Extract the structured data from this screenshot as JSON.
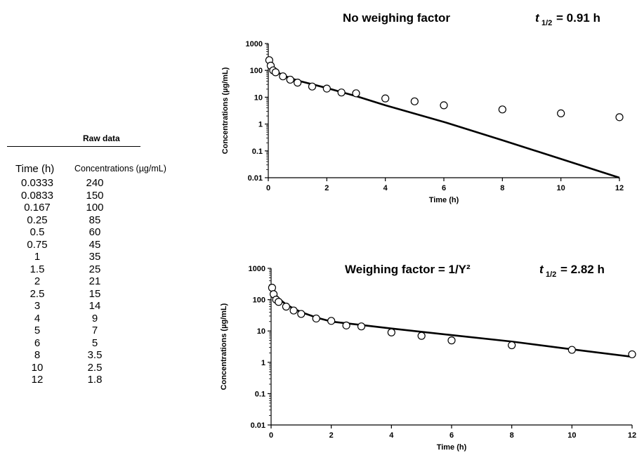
{
  "raw_data": {
    "title": "Raw data",
    "header_time": "Time (h)",
    "header_conc": "Concentrations (µg/mL)",
    "rows": [
      {
        "t": "0.0333",
        "c": "240"
      },
      {
        "t": "0.0833",
        "c": "150"
      },
      {
        "t": "0.167",
        "c": "100"
      },
      {
        "t": "0.25",
        "c": "85"
      },
      {
        "t": "0.5",
        "c": "60"
      },
      {
        "t": "0.75",
        "c": "45"
      },
      {
        "t": "1",
        "c": "35"
      },
      {
        "t": "1.5",
        "c": "25"
      },
      {
        "t": "2",
        "c": "21"
      },
      {
        "t": "2.5",
        "c": "15"
      },
      {
        "t": "3",
        "c": "14"
      },
      {
        "t": "4",
        "c": "9"
      },
      {
        "t": "5",
        "c": "7"
      },
      {
        "t": "6",
        "c": "5"
      },
      {
        "t": "8",
        "c": "3.5"
      },
      {
        "t": "10",
        "c": "2.5"
      },
      {
        "t": "12",
        "c": "1.8"
      }
    ]
  },
  "chart_data": [
    {
      "type": "scatter",
      "title": "No weighing factor",
      "half_life": "= 0.91 h",
      "xlabel": "Time (h)",
      "ylabel": "Concentrations (µg/mL)",
      "xlim": [
        0,
        12
      ],
      "ylim": [
        0.01,
        1000
      ],
      "yscale": "log",
      "xticks": [
        "0",
        "2",
        "4",
        "6",
        "8",
        "10",
        "12"
      ],
      "yticks": [
        "0.01",
        "0.1",
        "1",
        "10",
        "100",
        "1000"
      ],
      "points": {
        "x": [
          0.0333,
          0.0833,
          0.167,
          0.25,
          0.5,
          0.75,
          1,
          1.5,
          2,
          2.5,
          3,
          4,
          5,
          6,
          8,
          10,
          12
        ],
        "y": [
          240,
          150,
          100,
          85,
          60,
          45,
          35,
          25,
          21,
          15,
          14,
          9,
          7,
          5,
          3.5,
          2.5,
          1.8
        ]
      },
      "fit": {
        "x": [
          0,
          0.25,
          0.5,
          1,
          2,
          3,
          4,
          6,
          8,
          10,
          12
        ],
        "y": [
          150,
          95,
          65,
          42,
          22,
          11,
          5,
          1.2,
          0.25,
          0.05,
          0.01
        ]
      }
    },
    {
      "type": "scatter",
      "title": "Weighing factor = 1/Y²",
      "half_life": "= 2.82 h",
      "xlabel": "Time (h)",
      "ylabel": "Concentrations (µg/mL)",
      "xlim": [
        0,
        12
      ],
      "ylim": [
        0.01,
        1000
      ],
      "yscale": "log",
      "xticks": [
        "0",
        "2",
        "4",
        "6",
        "8",
        "10",
        "12"
      ],
      "yticks": [
        "0.01",
        "0.1",
        "1",
        "10",
        "100",
        "1000"
      ],
      "points": {
        "x": [
          0.0333,
          0.0833,
          0.167,
          0.25,
          0.5,
          0.75,
          1,
          1.5,
          2,
          2.5,
          3,
          4,
          5,
          6,
          8,
          10,
          12
        ],
        "y": [
          240,
          150,
          100,
          85,
          60,
          45,
          35,
          25,
          21,
          15,
          14,
          9,
          7,
          5,
          3.5,
          2.5,
          1.8
        ]
      },
      "fit": {
        "x": [
          0,
          0.25,
          0.5,
          0.75,
          1,
          1.5,
          2,
          3,
          4,
          6,
          8,
          10,
          12
        ],
        "y": [
          210,
          110,
          70,
          52,
          40,
          27,
          20,
          15.5,
          12,
          7.4,
          4.6,
          2.6,
          1.5
        ]
      }
    }
  ]
}
